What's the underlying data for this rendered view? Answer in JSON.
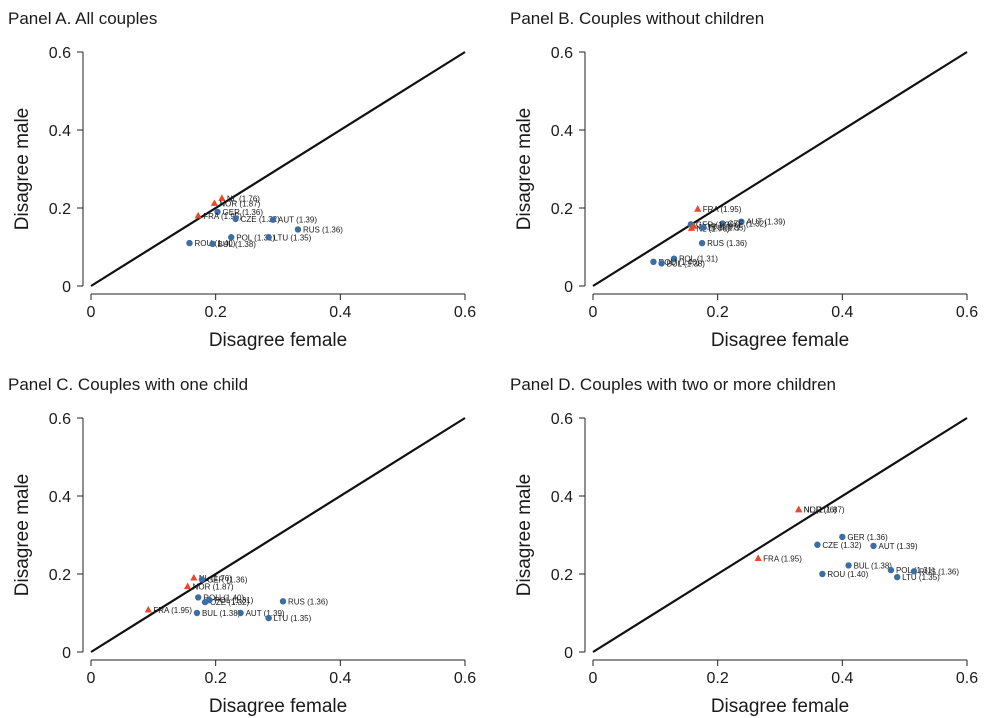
{
  "colors": {
    "circle": "#3a6ea5",
    "triangle": "#e8492b",
    "line": "#111111"
  },
  "chart_data": [
    {
      "type": "scatter",
      "title": "Panel A. All couples",
      "xlabel": "Disagree female",
      "ylabel": "Disagree male",
      "xlim": [
        0,
        0.6
      ],
      "ylim": [
        0,
        0.6
      ],
      "xticks": [
        "0",
        "0.2",
        "0.4",
        "0.6"
      ],
      "yticks": [
        "0",
        "0.2",
        "0.4",
        "0.6"
      ],
      "reference_line": "45-degree",
      "points": [
        {
          "label": "NL (1.76)",
          "x": 0.21,
          "y": 0.225,
          "marker": "triangle"
        },
        {
          "label": "NOR (1.87)",
          "x": 0.198,
          "y": 0.212,
          "marker": "triangle"
        },
        {
          "label": "GER (1.36)",
          "x": 0.203,
          "y": 0.19,
          "marker": "circle"
        },
        {
          "label": "FRA (1.95)",
          "x": 0.172,
          "y": 0.18,
          "marker": "triangle"
        },
        {
          "label": "CZE (1.32)",
          "x": 0.232,
          "y": 0.172,
          "marker": "circle"
        },
        {
          "label": "AUT (1.39)",
          "x": 0.292,
          "y": 0.17,
          "marker": "circle"
        },
        {
          "label": "RUS (1.36)",
          "x": 0.332,
          "y": 0.145,
          "marker": "circle"
        },
        {
          "label": "POL (1.31)",
          "x": 0.225,
          "y": 0.125,
          "marker": "circle"
        },
        {
          "label": "LTU (1.35)",
          "x": 0.285,
          "y": 0.125,
          "marker": "circle"
        },
        {
          "label": "ROU (1.40)",
          "x": 0.158,
          "y": 0.11,
          "marker": "circle"
        },
        {
          "label": "BUL (1.38)",
          "x": 0.195,
          "y": 0.108,
          "marker": "circle"
        }
      ]
    },
    {
      "type": "scatter",
      "title": "Panel B. Couples without children",
      "xlabel": "Disagree female",
      "ylabel": "Disagree male",
      "xlim": [
        0,
        0.6
      ],
      "ylim": [
        0,
        0.6
      ],
      "xticks": [
        "0",
        "0.2",
        "0.4",
        "0.6"
      ],
      "yticks": [
        "0",
        "0.2",
        "0.4",
        "0.6"
      ],
      "reference_line": "45-degree",
      "points": [
        {
          "label": "FRA (1.95)",
          "x": 0.168,
          "y": 0.197,
          "marker": "triangle"
        },
        {
          "label": "AUT (1.39)",
          "x": 0.238,
          "y": 0.165,
          "marker": "circle"
        },
        {
          "label": "CZE (1.32)",
          "x": 0.208,
          "y": 0.16,
          "marker": "circle"
        },
        {
          "label": "GER (1.36)",
          "x": 0.157,
          "y": 0.158,
          "marker": "circle"
        },
        {
          "label": "NOR (1.87)",
          "x": 0.162,
          "y": 0.153,
          "marker": "triangle"
        },
        {
          "label": "NL (1.76)",
          "x": 0.158,
          "y": 0.148,
          "marker": "triangle"
        },
        {
          "label": "LTU (1.35)",
          "x": 0.177,
          "y": 0.15,
          "marker": "circle"
        },
        {
          "label": "RUS (1.36)",
          "x": 0.175,
          "y": 0.11,
          "marker": "circle"
        },
        {
          "label": "POL (1.31)",
          "x": 0.13,
          "y": 0.07,
          "marker": "circle"
        },
        {
          "label": "ROU (1.40)",
          "x": 0.097,
          "y": 0.062,
          "marker": "circle"
        },
        {
          "label": "BUL (1.38)",
          "x": 0.11,
          "y": 0.058,
          "marker": "circle"
        }
      ]
    },
    {
      "type": "scatter",
      "title": "Panel C. Couples with one child",
      "xlabel": "Disagree female",
      "ylabel": "Disagree male",
      "xlim": [
        0,
        0.6
      ],
      "ylim": [
        0,
        0.6
      ],
      "xticks": [
        "0",
        "0.2",
        "0.4",
        "0.6"
      ],
      "yticks": [
        "0",
        "0.2",
        "0.4",
        "0.6"
      ],
      "reference_line": "45-degree",
      "points": [
        {
          "label": "NL (1.76)",
          "x": 0.165,
          "y": 0.19,
          "marker": "triangle"
        },
        {
          "label": "GER (1.36)",
          "x": 0.178,
          "y": 0.186,
          "marker": "circle"
        },
        {
          "label": "NOR (1.87)",
          "x": 0.155,
          "y": 0.168,
          "marker": "triangle"
        },
        {
          "label": "ROU (1.40)",
          "x": 0.172,
          "y": 0.14,
          "marker": "circle"
        },
        {
          "label": "CZE (1.32)",
          "x": 0.183,
          "y": 0.128,
          "marker": "circle"
        },
        {
          "label": "POL (1.31)",
          "x": 0.19,
          "y": 0.133,
          "marker": "circle"
        },
        {
          "label": "RUS (1.36)",
          "x": 0.308,
          "y": 0.13,
          "marker": "circle"
        },
        {
          "label": "FRA (1.95)",
          "x": 0.092,
          "y": 0.108,
          "marker": "triangle"
        },
        {
          "label": "BUL (1.38)",
          "x": 0.17,
          "y": 0.1,
          "marker": "circle"
        },
        {
          "label": "AUT (1.39)",
          "x": 0.24,
          "y": 0.1,
          "marker": "circle"
        },
        {
          "label": "LTU (1.35)",
          "x": 0.285,
          "y": 0.087,
          "marker": "circle"
        }
      ]
    },
    {
      "type": "scatter",
      "title": "Panel D. Couples with two or more children",
      "xlabel": "Disagree female",
      "ylabel": "Disagree male",
      "xlim": [
        0,
        0.6
      ],
      "ylim": [
        0,
        0.6
      ],
      "xticks": [
        "0",
        "0.2",
        "0.4",
        "0.6"
      ],
      "yticks": [
        "0",
        "0.2",
        "0.4",
        "0.6"
      ],
      "reference_line": "45-degree",
      "points": [
        {
          "label": "NL (1.76)",
          "x": 0.33,
          "y": 0.365,
          "marker": "triangle"
        },
        {
          "label": "NOR (1.87)",
          "x": 0.33,
          "y": 0.365,
          "marker": "triangle"
        },
        {
          "label": "GER (1.36)",
          "x": 0.4,
          "y": 0.295,
          "marker": "circle"
        },
        {
          "label": "CZE (1.32)",
          "x": 0.36,
          "y": 0.275,
          "marker": "circle"
        },
        {
          "label": "AUT (1.39)",
          "x": 0.45,
          "y": 0.272,
          "marker": "circle"
        },
        {
          "label": "FRA (1.95)",
          "x": 0.265,
          "y": 0.24,
          "marker": "triangle"
        },
        {
          "label": "BUL (1.38)",
          "x": 0.41,
          "y": 0.222,
          "marker": "circle"
        },
        {
          "label": "POL (1.31)",
          "x": 0.478,
          "y": 0.21,
          "marker": "circle"
        },
        {
          "label": "RUS (1.36)",
          "x": 0.515,
          "y": 0.207,
          "marker": "circle"
        },
        {
          "label": "ROU (1.40)",
          "x": 0.368,
          "y": 0.2,
          "marker": "circle"
        },
        {
          "label": "LTU (1.35)",
          "x": 0.488,
          "y": 0.192,
          "marker": "circle"
        }
      ]
    }
  ]
}
